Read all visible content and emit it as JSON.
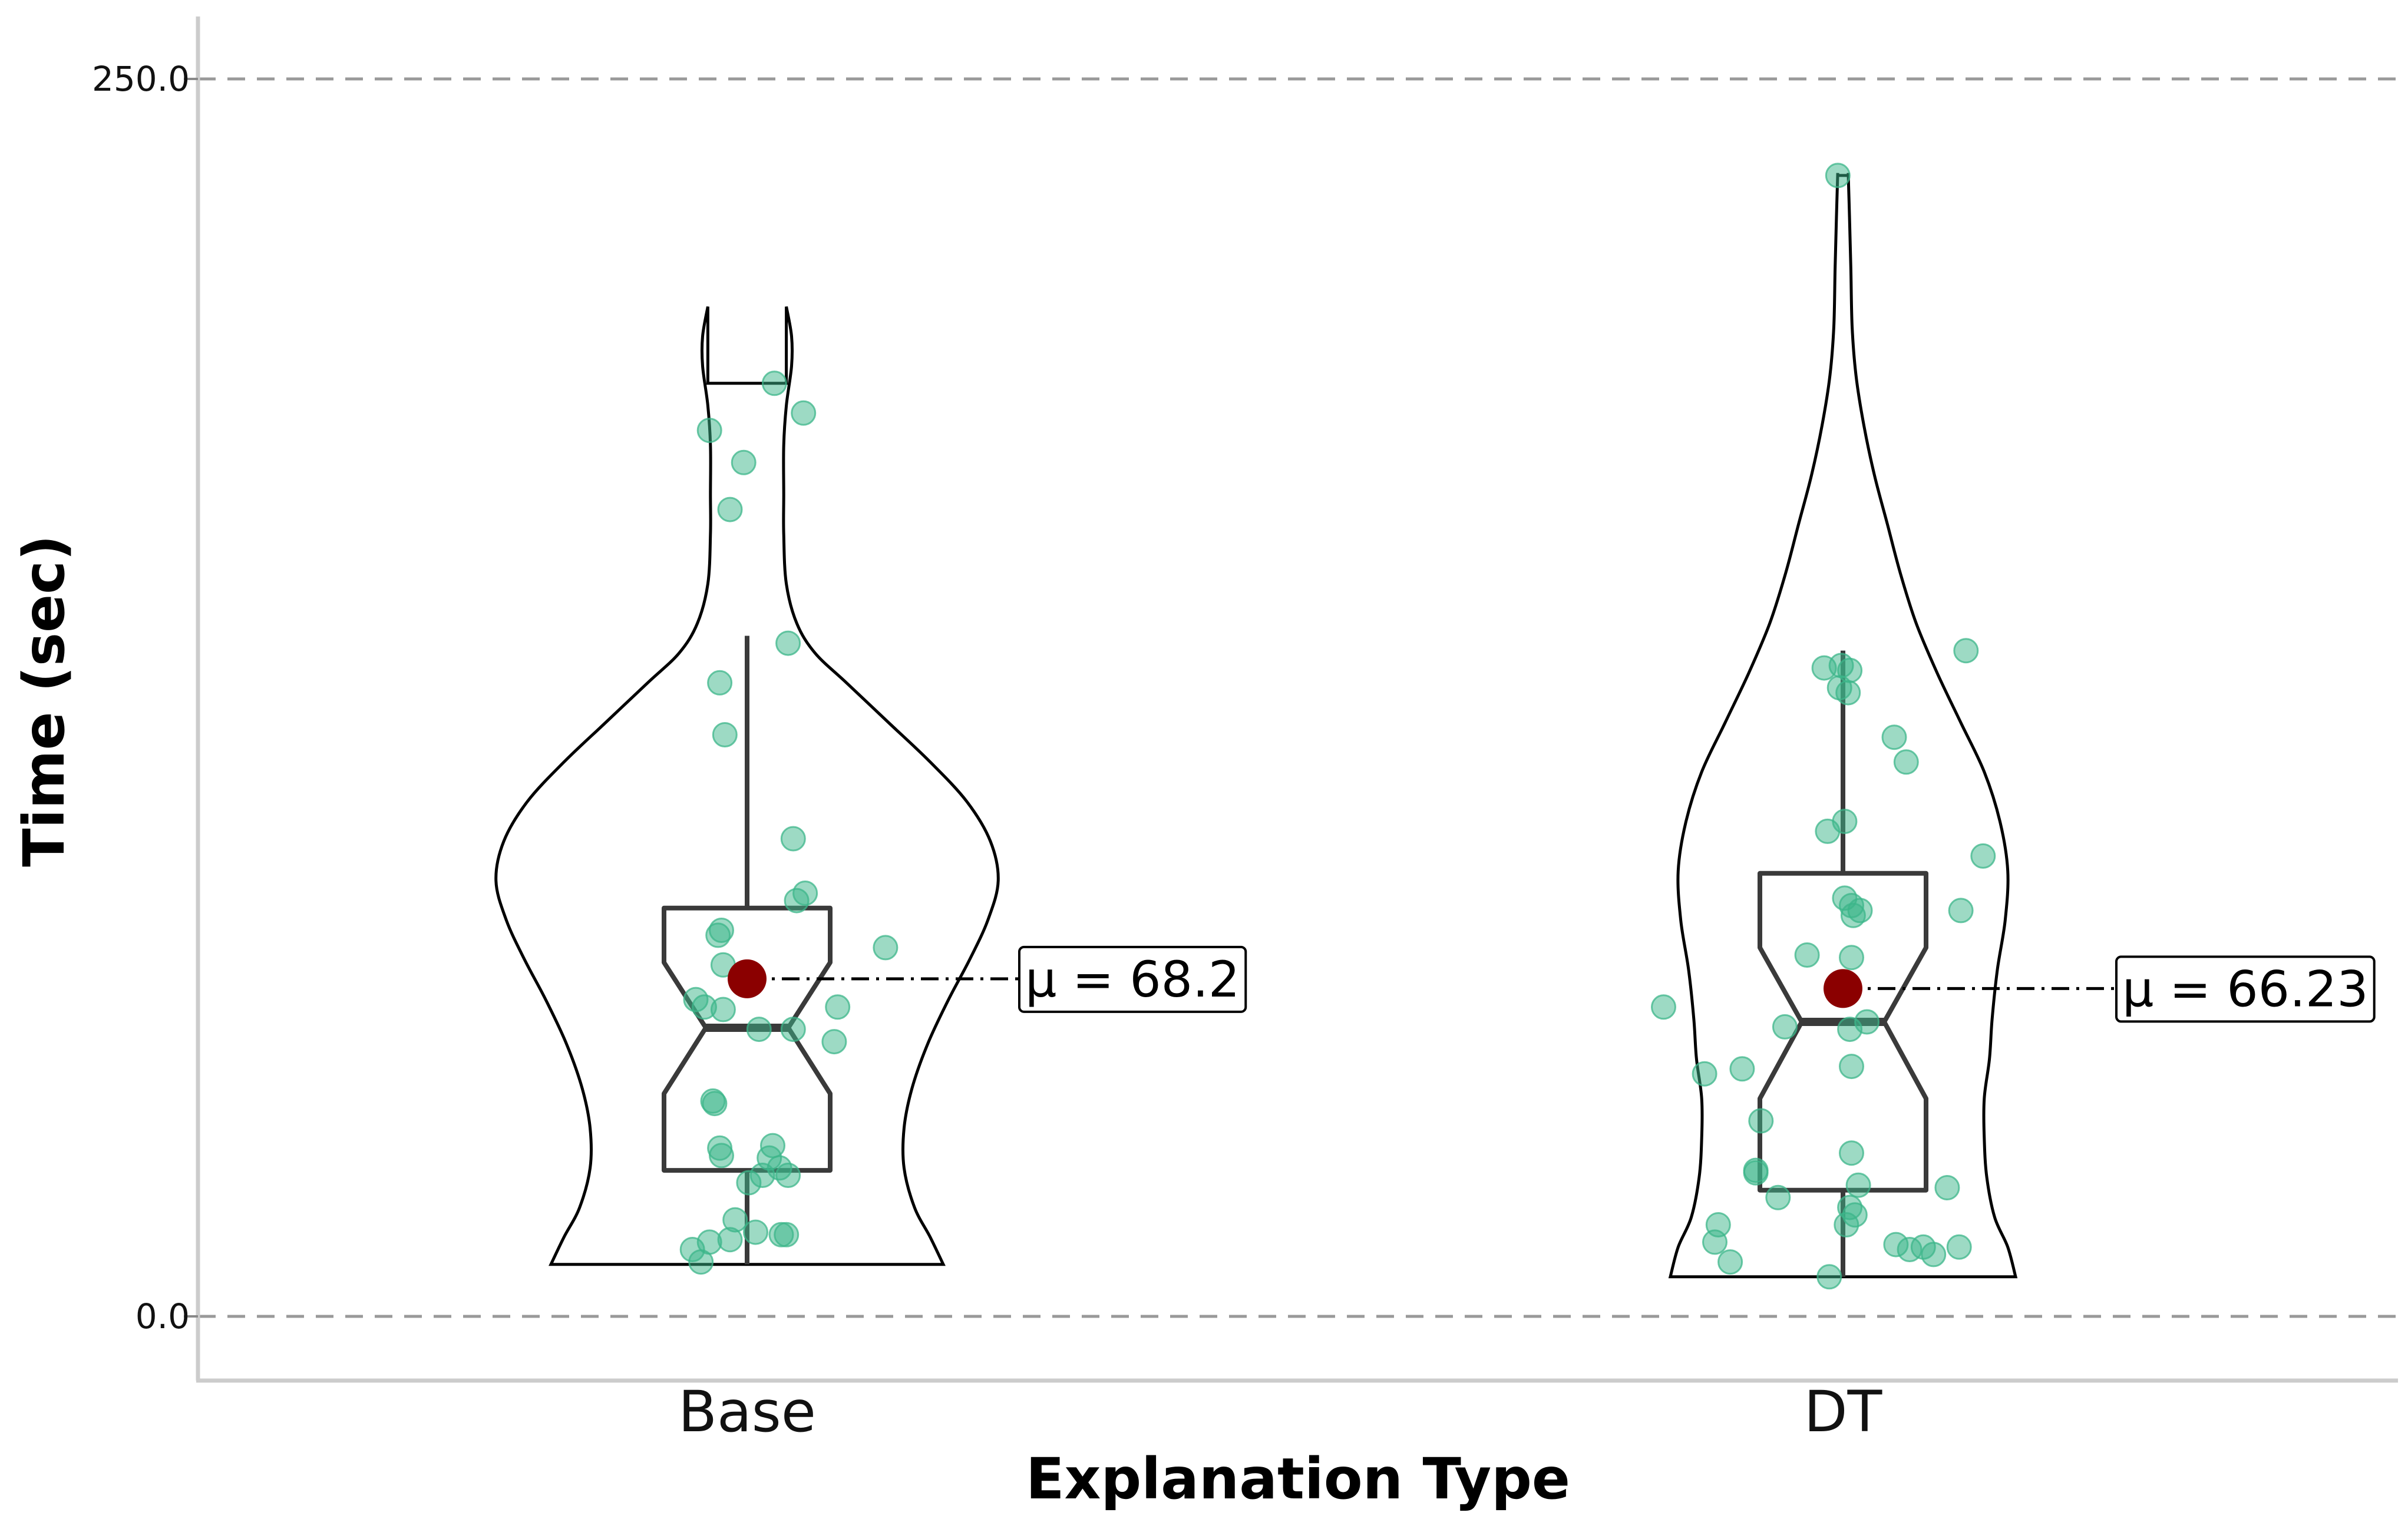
{
  "chart_data": {
    "type": "violin",
    "title": "",
    "xlabel": "Explanation Type",
    "ylabel": "Time (sec)",
    "ylim": [
      -12.5,
      262.7
    ],
    "yticks": [
      {
        "value": 0.0,
        "label": "0.0"
      },
      {
        "value": 250.0,
        "label": "250.0"
      }
    ],
    "grid": "dashed horizontal at ticks",
    "colors": {
      "points": "#3cb58a",
      "mean": "#8b0000",
      "box": "#3a3a3a",
      "violin": "#000000",
      "grid": "#999999",
      "spine": "#cccccc"
    },
    "categories": [
      {
        "name": "Base",
        "mean": 68.2,
        "mean_label": "μ = 68.2",
        "box": {
          "whisker_low": 10.5,
          "q1": 29.5,
          "median": 58.3,
          "q3": 82.5,
          "whisker_high": 137.5,
          "notch_low": 45.0,
          "notch_high": 71.5
        },
        "violin": [
          [
            10.5,
            0.75
          ],
          [
            16,
            0.7
          ],
          [
            22,
            0.64
          ],
          [
            30,
            0.6
          ],
          [
            38,
            0.6
          ],
          [
            46,
            0.63
          ],
          [
            55,
            0.69
          ],
          [
            64,
            0.77
          ],
          [
            72,
            0.85
          ],
          [
            80,
            0.92
          ],
          [
            88,
            0.96
          ],
          [
            96,
            0.93
          ],
          [
            104,
            0.84
          ],
          [
            112,
            0.7
          ],
          [
            120,
            0.54
          ],
          [
            128,
            0.38
          ],
          [
            134,
            0.26
          ],
          [
            140,
            0.19
          ],
          [
            148,
            0.15
          ],
          [
            158,
            0.14
          ],
          [
            166,
            0.14
          ],
          [
            176,
            0.14
          ],
          [
            184,
            0.15
          ],
          [
            192,
            0.17
          ],
          [
            198,
            0.17
          ],
          [
            204,
            0.15
          ],
          [
            10.5,
            0.0
          ]
        ],
        "violin_top": 188.5,
        "points": [
          [
            0.16,
            188.5
          ],
          [
            -0.22,
            179
          ],
          [
            0.33,
            182.5
          ],
          [
            -0.02,
            172.5
          ],
          [
            -0.1,
            163
          ],
          [
            0.24,
            136
          ],
          [
            -0.16,
            128
          ],
          [
            -0.13,
            117.5
          ],
          [
            0.27,
            96.5
          ],
          [
            0.34,
            85.5
          ],
          [
            0.29,
            84
          ],
          [
            0.81,
            74.5
          ],
          [
            -0.17,
            77
          ],
          [
            -0.15,
            78
          ],
          [
            -0.14,
            71
          ],
          [
            -0.3,
            64
          ],
          [
            -0.25,
            62.5
          ],
          [
            -0.14,
            62
          ],
          [
            0.53,
            62.5
          ],
          [
            0.07,
            58
          ],
          [
            0.27,
            58
          ],
          [
            0.51,
            55.5
          ],
          [
            -0.2,
            43.5
          ],
          [
            -0.19,
            43
          ],
          [
            0.15,
            34.5
          ],
          [
            -0.16,
            34
          ],
          [
            -0.15,
            32.5
          ],
          [
            0.13,
            32
          ],
          [
            0.19,
            30
          ],
          [
            0.09,
            28.5
          ],
          [
            0.24,
            28.5
          ],
          [
            0.01,
            27
          ],
          [
            -0.07,
            19.5
          ],
          [
            0.05,
            17
          ],
          [
            0.2,
            16.5
          ],
          [
            0.23,
            16.5
          ],
          [
            -0.1,
            15.5
          ],
          [
            -0.22,
            15
          ],
          [
            -0.32,
            13.5
          ],
          [
            -0.27,
            11
          ]
        ]
      },
      {
        "name": "DT",
        "mean": 66.23,
        "mean_label": "μ = 66.23",
        "box": {
          "whisker_low": 8.0,
          "q1": 25.5,
          "median": 59.5,
          "q3": 89.5,
          "whisker_high": 134.5,
          "notch_low": 44.0,
          "notch_high": 74.5
        },
        "violin": [
          [
            8,
            0.66
          ],
          [
            14,
            0.63
          ],
          [
            20,
            0.58
          ],
          [
            28,
            0.55
          ],
          [
            36,
            0.54
          ],
          [
            44,
            0.54
          ],
          [
            52,
            0.56
          ],
          [
            60,
            0.57
          ],
          [
            70,
            0.59
          ],
          [
            80,
            0.62
          ],
          [
            90,
            0.63
          ],
          [
            100,
            0.6
          ],
          [
            110,
            0.54
          ],
          [
            120,
            0.45
          ],
          [
            130,
            0.36
          ],
          [
            140,
            0.28
          ],
          [
            150,
            0.22
          ],
          [
            160,
            0.17
          ],
          [
            170,
            0.12
          ],
          [
            180,
            0.08
          ],
          [
            190,
            0.05
          ],
          [
            200,
            0.035
          ],
          [
            212,
            0.03
          ],
          [
            222,
            0.025
          ],
          [
            231,
            0.02
          ],
          [
            8,
            0.0
          ]
        ],
        "violin_top": 230.5,
        "points": [
          [
            -0.03,
            230.5
          ],
          [
            0.72,
            134.5
          ],
          [
            -0.01,
            131.5
          ],
          [
            -0.11,
            131
          ],
          [
            0.04,
            130.5
          ],
          [
            -0.02,
            127
          ],
          [
            0.03,
            126
          ],
          [
            0.3,
            117
          ],
          [
            0.37,
            112
          ],
          [
            0.01,
            100
          ],
          [
            -0.09,
            98
          ],
          [
            0.82,
            93
          ],
          [
            0.01,
            84.5
          ],
          [
            0.05,
            83
          ],
          [
            0.06,
            81
          ],
          [
            0.1,
            82
          ],
          [
            0.69,
            82
          ],
          [
            -0.21,
            73
          ],
          [
            0.05,
            72.5
          ],
          [
            -1.05,
            62.5
          ],
          [
            0.14,
            59.5
          ],
          [
            -0.34,
            58.5
          ],
          [
            0.04,
            58
          ],
          [
            0.05,
            50.5
          ],
          [
            -0.81,
            49
          ],
          [
            -0.59,
            50
          ],
          [
            -0.48,
            39.5
          ],
          [
            0.05,
            33
          ],
          [
            -0.51,
            29.5
          ],
          [
            -0.51,
            29
          ],
          [
            0.09,
            26.5
          ],
          [
            0.61,
            26
          ],
          [
            -0.38,
            24
          ],
          [
            0.04,
            22
          ],
          [
            0.07,
            20.5
          ],
          [
            0.02,
            18.5
          ],
          [
            -0.73,
            18.5
          ],
          [
            0.31,
            14.5
          ],
          [
            0.47,
            14
          ],
          [
            0.68,
            14
          ],
          [
            -0.75,
            15
          ],
          [
            0.39,
            13.5
          ],
          [
            -0.66,
            11
          ],
          [
            0.53,
            12.5
          ],
          [
            -0.08,
            8
          ]
        ]
      }
    ]
  }
}
